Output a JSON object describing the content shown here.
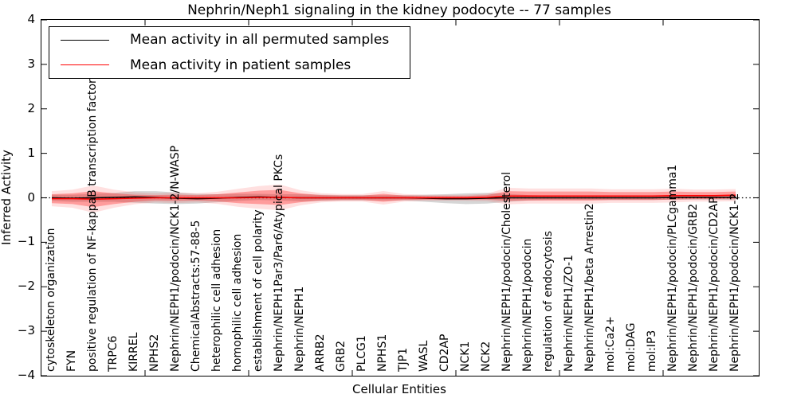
{
  "chart_data": {
    "type": "line",
    "title": "Nephrin/Neph1 signaling in the kidney podocyte -- 77 samples",
    "xlabel": "Cellular Entities",
    "ylabel": "Inferred Activity",
    "ylim": [
      -4,
      4
    ],
    "ytick_values": [
      4,
      3,
      2,
      1,
      0,
      -1,
      -2,
      -3,
      -4
    ],
    "ytick_labels": [
      "4",
      "3",
      "2",
      "1",
      "0",
      "−1",
      "−2",
      "−3",
      "−4"
    ],
    "grid": false,
    "legend_position": "upper left",
    "zero_line_style": "dotted",
    "categories": [
      "cytoskeleton organization",
      "FYN",
      "positive regulation of NF-kappaB transcription factor activity",
      "TRPC6",
      "KIRREL",
      "NPHS2",
      "Nephrin/NEPH1/podocin/NCK1-2/N-WASP",
      "ChemicalAbstracts:57-88-5",
      "heterophilic cell adhesion",
      "homophilic cell adhesion",
      "establishment of cell polarity",
      "Nephrin/NEPH1Par3/Par6/Atypical PKCs",
      "Nephrin/NEPH1",
      "ARRB2",
      "GRB2",
      "PLCG1",
      "NPHS1",
      "TJP1",
      "WASL",
      "CD2AP",
      "NCK1",
      "NCK2",
      "Nephrin/NEPH1/podocin/Cholesterol",
      "Nephrin/NEPH1/podocin",
      "regulation of endocytosis",
      "Nephrin/NEPH1/ZO-1",
      "Nephrin/NEPH1/beta Arrestin2",
      "mol:Ca2+",
      "mol:DAG",
      "mol:IP3",
      "Nephrin/NEPH1/podocin/PLCgamma1",
      "Nephrin/NEPH1/podocin/GRB2",
      "Nephrin/NEPH1/podocin/CD2AP",
      "Nephrin/NEPH1/podocin/NCK1-2"
    ],
    "series": [
      {
        "name": "Mean activity in all permuted samples",
        "color": "#000000",
        "band_fill": "rgba(0,0,0,0.16)",
        "values": [
          0.0,
          -0.01,
          0.0,
          0.01,
          0.02,
          0.01,
          -0.01,
          -0.02,
          -0.01,
          0.01,
          0.02,
          0.01,
          0.0,
          0.0,
          0.0,
          0.0,
          0.0,
          0.0,
          -0.01,
          -0.02,
          -0.02,
          -0.01,
          0.0,
          0.0,
          0.0,
          0.0,
          0.0,
          0.0,
          0.0,
          0.0,
          0.01,
          0.01,
          0.01,
          0.01
        ],
        "std": [
          0.07,
          0.08,
          0.09,
          0.1,
          0.13,
          0.14,
          0.13,
          0.11,
          0.09,
          0.08,
          0.07,
          0.07,
          0.08,
          0.07,
          0.06,
          0.06,
          0.06,
          0.06,
          0.08,
          0.1,
          0.12,
          0.12,
          0.09,
          0.06,
          0.05,
          0.05,
          0.05,
          0.05,
          0.05,
          0.05,
          0.05,
          0.05,
          0.05,
          0.06
        ]
      },
      {
        "name": "Mean activity in patient samples",
        "color": "#ff0000",
        "band_fill": "rgba(255,0,0,0.30)",
        "band_fill_outer": "rgba(255,0,0,0.12)",
        "values": [
          -0.02,
          -0.02,
          -0.03,
          -0.02,
          -0.01,
          0.0,
          0.0,
          0.0,
          0.0,
          0.0,
          0.01,
          0.01,
          0.0,
          0.0,
          0.0,
          0.0,
          0.0,
          0.0,
          0.0,
          0.0,
          0.0,
          0.01,
          0.04,
          0.04,
          0.04,
          0.04,
          0.04,
          0.04,
          0.04,
          0.04,
          0.05,
          0.05,
          0.05,
          0.06
        ],
        "std": [
          0.1,
          0.12,
          0.18,
          0.12,
          0.08,
          0.06,
          0.07,
          0.06,
          0.08,
          0.12,
          0.15,
          0.17,
          0.1,
          0.06,
          0.05,
          0.05,
          0.09,
          0.05,
          0.04,
          0.04,
          0.04,
          0.05,
          0.11,
          0.1,
          0.1,
          0.1,
          0.1,
          0.09,
          0.09,
          0.09,
          0.09,
          0.08,
          0.08,
          0.08
        ]
      }
    ]
  }
}
